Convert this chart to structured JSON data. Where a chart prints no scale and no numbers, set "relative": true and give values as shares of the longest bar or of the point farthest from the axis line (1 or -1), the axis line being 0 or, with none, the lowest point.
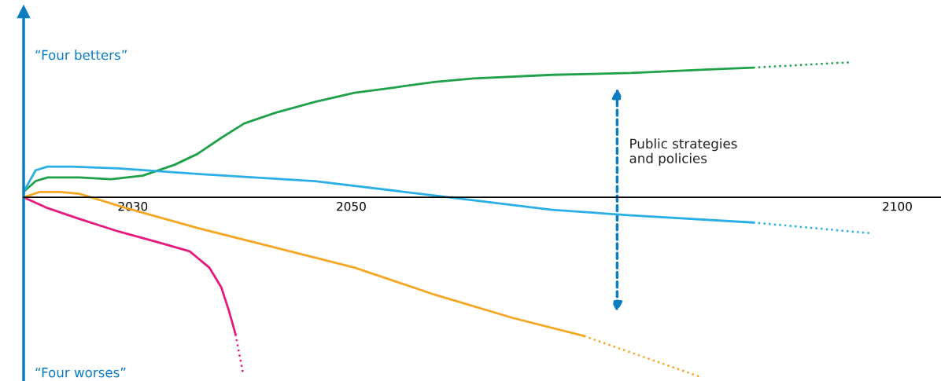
{
  "chart_data": {
    "type": "line",
    "relative": true,
    "xlim": [
      2020,
      2104
    ],
    "xticks": [
      2030,
      2050,
      2100
    ],
    "tick_labels": "x",
    "grid": false,
    "marker": "none",
    "series": [
      {
        "color": "#1fa14a",
        "line_style": "solid",
        "x": [
          2020.0,
          2021.1,
          2022.2,
          2025.1,
          2028.0,
          2030.9,
          2033.8,
          2035.9,
          2038.1,
          2040.2,
          2043.1,
          2046.7,
          2050.3,
          2054.0,
          2057.6,
          2061.2,
          2068.4,
          2075.6,
          2082.8,
          2086.8
        ],
        "values": [
          0.03,
          0.09,
          0.11,
          0.11,
          0.1,
          0.12,
          0.18,
          0.24,
          0.33,
          0.41,
          0.47,
          0.53,
          0.58,
          0.61,
          0.64,
          0.66,
          0.68,
          0.69,
          0.71,
          0.72
        ]
      },
      {
        "color": "#1fa14a",
        "line_style": "dotted",
        "x": [
          2086.8,
          2095.8
        ],
        "values": [
          0.72,
          0.75
        ]
      },
      {
        "color": "#29aee6",
        "line_style": "solid",
        "x": [
          2020.0,
          2021.1,
          2022.2,
          2024.4,
          2028.7,
          2035.9,
          2046.7,
          2057.6,
          2068.4,
          2075.6,
          2086.8
        ],
        "values": [
          0.03,
          0.15,
          0.17,
          0.17,
          0.16,
          0.13,
          0.09,
          0.01,
          -0.07,
          -0.1,
          -0.14
        ]
      },
      {
        "color": "#29aee6",
        "line_style": "dotted",
        "x": [
          2086.8,
          2097.6
        ],
        "values": [
          -0.14,
          -0.2
        ]
      },
      {
        "color": "#f5a623",
        "line_style": "solid",
        "x": [
          2020.0,
          2021.5,
          2023.3,
          2025.1,
          2029.4,
          2035.9,
          2043.1,
          2050.3,
          2057.6,
          2064.8,
          2071.3
        ],
        "values": [
          0.0,
          0.03,
          0.03,
          0.02,
          -0.06,
          -0.17,
          -0.28,
          -0.39,
          -0.54,
          -0.67,
          -0.77
        ]
      },
      {
        "color": "#f5a623",
        "line_style": "dotted",
        "x": [
          2071.3,
          2082.1
        ],
        "values": [
          -0.77,
          -1.0
        ]
      },
      {
        "color": "#e5197e",
        "line_style": "solid",
        "x": [
          2020.0,
          2022.2,
          2025.1,
          2028.7,
          2032.3,
          2035.2,
          2037.0,
          2038.1,
          2038.8,
          2039.4
        ],
        "values": [
          0.0,
          -0.06,
          -0.12,
          -0.19,
          -0.25,
          -0.3,
          -0.39,
          -0.5,
          -0.63,
          -0.76
        ]
      },
      {
        "color": "#e5197e",
        "line_style": "dotted",
        "x": [
          2039.4,
          2040.1
        ],
        "values": [
          -0.76,
          -0.98
        ]
      }
    ],
    "annotations": [
      "“Four betters”",
      "“Four worses”",
      "Public strategies\nand policies"
    ]
  }
}
